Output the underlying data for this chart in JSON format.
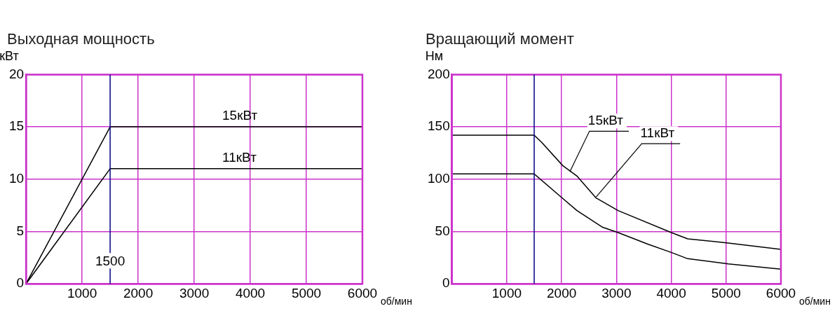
{
  "chart_data": [
    {
      "type": "line",
      "title": "Выходная мощность",
      "xlabel": "об/мин",
      "ylabel": "кВт",
      "xlim": [
        0,
        6000
      ],
      "xticks": [
        1000,
        2000,
        3000,
        4000,
        5000,
        6000
      ],
      "ylim": [
        0,
        20
      ],
      "yticks": [
        0,
        5,
        10,
        15,
        20
      ],
      "grid": true,
      "legend": false,
      "marker": "none",
      "ref_lines": [
        {
          "axis": "x",
          "value": 1500,
          "label": "1500",
          "color": "#000080"
        }
      ],
      "series": [
        {
          "name": "15кВт",
          "color": "#000000",
          "x": [
            0,
            1500,
            6000
          ],
          "values": [
            0,
            15,
            15
          ]
        },
        {
          "name": "11кВт",
          "color": "#000000",
          "x": [
            0,
            1500,
            6000
          ],
          "values": [
            0,
            11,
            11
          ]
        }
      ]
    },
    {
      "type": "line",
      "title": "Вращающий момент",
      "xlabel": "об/мин",
      "ylabel": "Нм",
      "xlim": [
        0,
        6000
      ],
      "xticks": [
        1000,
        2000,
        3000,
        4000,
        5000,
        6000
      ],
      "ylim": [
        0,
        200
      ],
      "yticks": [
        0,
        50,
        100,
        150,
        200
      ],
      "grid": true,
      "legend": false,
      "marker": "none",
      "ref_lines": [
        {
          "axis": "x",
          "value": 1500,
          "color": "#000080"
        }
      ],
      "annotations": [
        {
          "text": "15кВт",
          "x": 2150,
          "y": 107
        },
        {
          "text": "11кВт",
          "x": 2630,
          "y": 83
        }
      ],
      "series": [
        {
          "color": "#000000",
          "x": [
            0,
            1500,
            1640,
            2020,
            2280,
            2630,
            3030,
            4000,
            4300,
            5040,
            6000
          ],
          "values": [
            142,
            142,
            135,
            113,
            103,
            82,
            70,
            49,
            43,
            39,
            33
          ]
        },
        {
          "color": "#000000",
          "x": [
            0,
            1500,
            1990,
            2280,
            2750,
            3030,
            3570,
            4000,
            4300,
            5040,
            6000
          ],
          "values": [
            105,
            105,
            83,
            70,
            54,
            49,
            38,
            30,
            24,
            19,
            14
          ]
        }
      ]
    }
  ]
}
